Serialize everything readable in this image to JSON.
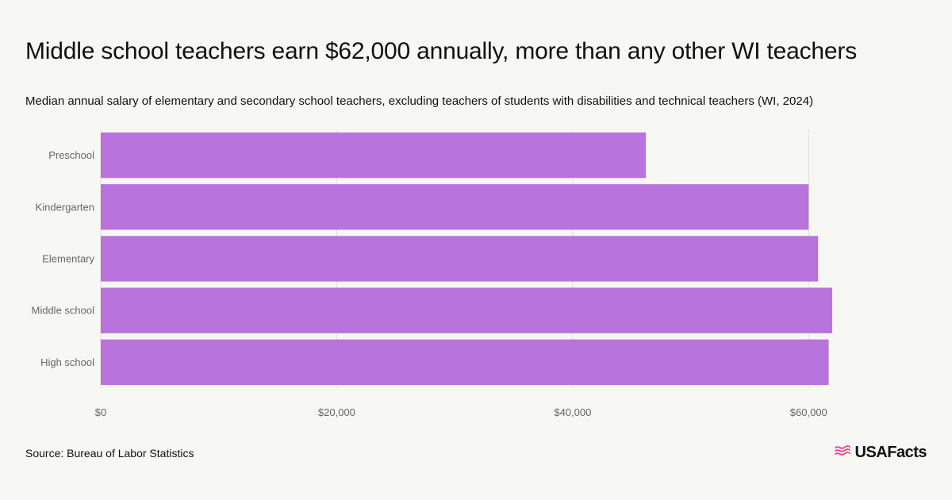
{
  "header": {
    "title": "Middle school teachers earn $62,000 annually, more than any other WI teachers",
    "subtitle": "Median annual salary of elementary and secondary school teachers, excluding teachers of students with disabilities and technical teachers (WI, 2024)"
  },
  "footer": {
    "source": "Source: Bureau of Labor Statistics",
    "logo_text": "USAFacts",
    "logo_icon": "us-flag-icon"
  },
  "colors": {
    "bar": "#b873dd",
    "grid": "#dddddd",
    "background": "#f7f7f3",
    "logo_accent": "#e0458f"
  },
  "chart_data": {
    "type": "bar",
    "orientation": "horizontal",
    "categories": [
      "Preschool",
      "Kindergarten",
      "Elementary",
      "Middle school",
      "High school"
    ],
    "values": [
      46200,
      60000,
      60800,
      62000,
      61700
    ],
    "xlim": [
      0,
      70000
    ],
    "ticks": [
      0,
      20000,
      40000,
      60000
    ],
    "tick_labels": [
      "$0",
      "$20,000",
      "$40,000",
      "$60,000"
    ],
    "grid": true
  }
}
